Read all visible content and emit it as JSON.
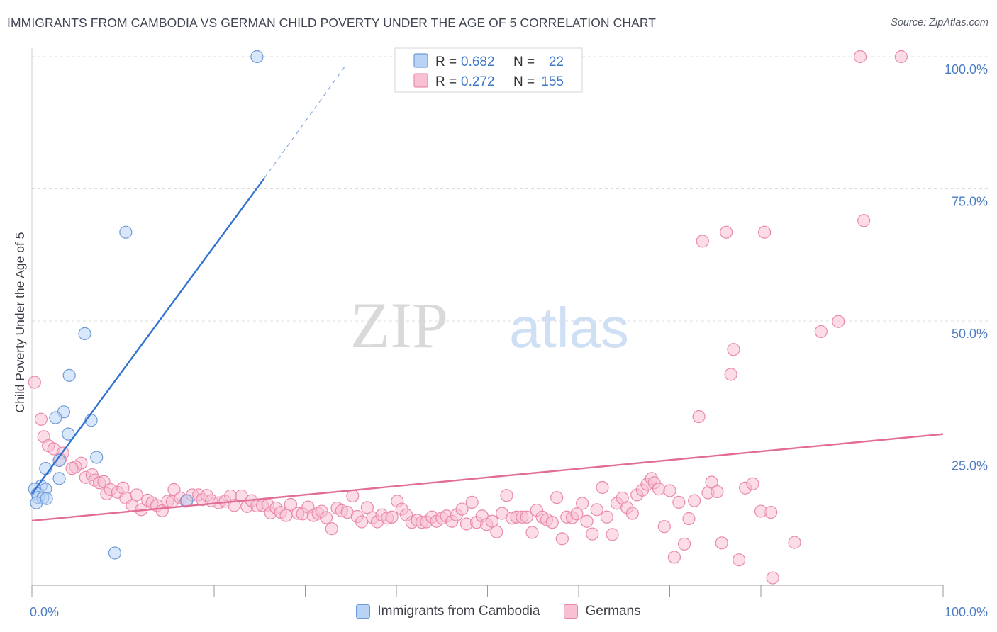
{
  "title": "IMMIGRANTS FROM CAMBODIA VS GERMAN CHILD POVERTY UNDER THE AGE OF 5 CORRELATION CHART",
  "source": "Source: ZipAtlas.com",
  "colors": {
    "blue_fill": "#b9d3f6",
    "blue_stroke": "#6f9bd8",
    "blue_line": "#2f72d0",
    "pink_fill": "#f8c0d3",
    "pink_stroke": "#e98aab",
    "pink_line": "#e36b97",
    "tick_label": "#4d7cc3",
    "grid": "#dcdcdc",
    "axis": "#9a9a9a"
  },
  "chart_data": {
    "type": "scatter",
    "title": "IMMIGRANTS FROM CAMBODIA VS GERMAN CHILD POVERTY UNDER THE AGE OF 5 CORRELATION CHART",
    "xlabel": "",
    "ylabel": "Child Poverty Under the Age of 5",
    "xlim": [
      0,
      100
    ],
    "ylim": [
      0,
      100
    ],
    "x_tick_labels": [
      "0.0%",
      "100.0%"
    ],
    "y_ticks": [
      25,
      50,
      75,
      100
    ],
    "y_tick_labels": [
      "25.0%",
      "50.0%",
      "75.0%",
      "100.0%"
    ],
    "grid": true,
    "legend_position": "top-center",
    "legend": [
      {
        "r_label": "R =",
        "r_value": "0.682",
        "n_label": "N =",
        "n_value": "22"
      },
      {
        "r_label": "R =",
        "r_value": "0.272",
        "n_label": "N =",
        "n_value": "155"
      }
    ],
    "series": [
      {
        "name": "Immigrants from Cambodia",
        "color": "blue",
        "trend": {
          "x0": 0,
          "y0": 17.3,
          "x1": 25.5,
          "y1": 77.0,
          "dash_to_x": 34.5,
          "dash_to_y": 98.5
        },
        "points": [
          [
            24.7,
            100
          ],
          [
            10.3,
            66.8
          ],
          [
            5.8,
            47.6
          ],
          [
            4.1,
            39.7
          ],
          [
            3.5,
            32.8
          ],
          [
            2.6,
            31.7
          ],
          [
            6.5,
            31.2
          ],
          [
            4.0,
            28.6
          ],
          [
            7.1,
            24.2
          ],
          [
            3.0,
            23.6
          ],
          [
            1.5,
            22.1
          ],
          [
            3.0,
            20.2
          ],
          [
            1.0,
            18.8
          ],
          [
            1.5,
            18.2
          ],
          [
            0.3,
            18.2
          ],
          [
            0.6,
            17.3
          ],
          [
            0.7,
            16.6
          ],
          [
            1.2,
            16.5
          ],
          [
            0.5,
            15.6
          ],
          [
            1.6,
            16.4
          ],
          [
            17.0,
            16.0
          ],
          [
            9.1,
            6.1
          ]
        ]
      },
      {
        "name": "Germans",
        "color": "pink",
        "trend": {
          "x0": 0,
          "y0": 12.2,
          "x1": 100,
          "y1": 28.6
        },
        "points": [
          [
            0.3,
            38.4
          ],
          [
            1.0,
            31.4
          ],
          [
            1.3,
            28.1
          ],
          [
            1.8,
            26.4
          ],
          [
            2.4,
            25.8
          ],
          [
            3.4,
            25.0
          ],
          [
            3.1,
            23.8
          ],
          [
            5.4,
            23.1
          ],
          [
            4.8,
            22.4
          ],
          [
            4.4,
            22.1
          ],
          [
            5.9,
            20.4
          ],
          [
            6.6,
            20.9
          ],
          [
            6.9,
            19.9
          ],
          [
            7.4,
            19.4
          ],
          [
            7.9,
            19.6
          ],
          [
            8.2,
            17.3
          ],
          [
            8.6,
            18.1
          ],
          [
            9.4,
            17.6
          ],
          [
            10.0,
            18.4
          ],
          [
            10.3,
            16.5
          ],
          [
            11.0,
            15.1
          ],
          [
            11.5,
            17.1
          ],
          [
            12.0,
            14.3
          ],
          [
            12.7,
            16.1
          ],
          [
            13.2,
            15.6
          ],
          [
            13.7,
            15.1
          ],
          [
            14.3,
            14.1
          ],
          [
            14.9,
            15.9
          ],
          [
            15.4,
            15.8
          ],
          [
            15.6,
            18.1
          ],
          [
            16.3,
            16.5
          ],
          [
            16.9,
            15.9
          ],
          [
            17.6,
            17.1
          ],
          [
            18.3,
            17.1
          ],
          [
            18.7,
            16.2
          ],
          [
            19.2,
            17.0
          ],
          [
            19.7,
            16.0
          ],
          [
            20.5,
            15.6
          ],
          [
            21.2,
            15.9
          ],
          [
            21.8,
            16.9
          ],
          [
            22.2,
            15.1
          ],
          [
            23.0,
            16.9
          ],
          [
            23.6,
            14.9
          ],
          [
            24.1,
            16.0
          ],
          [
            24.7,
            15.0
          ],
          [
            25.3,
            15.1
          ],
          [
            25.9,
            15.2
          ],
          [
            26.2,
            13.7
          ],
          [
            26.8,
            14.6
          ],
          [
            27.3,
            13.8
          ],
          [
            27.9,
            13.2
          ],
          [
            28.4,
            15.3
          ],
          [
            29.2,
            13.6
          ],
          [
            29.7,
            13.5
          ],
          [
            30.3,
            14.8
          ],
          [
            30.9,
            13.2
          ],
          [
            31.4,
            13.6
          ],
          [
            31.8,
            14.0
          ],
          [
            32.3,
            12.8
          ],
          [
            32.9,
            10.7
          ],
          [
            33.5,
            14.6
          ],
          [
            34.0,
            14.1
          ],
          [
            34.6,
            13.8
          ],
          [
            35.2,
            16.9
          ],
          [
            35.7,
            13.0
          ],
          [
            36.2,
            12.0
          ],
          [
            36.8,
            14.7
          ],
          [
            37.4,
            12.8
          ],
          [
            37.9,
            12.0
          ],
          [
            38.4,
            13.3
          ],
          [
            39.0,
            12.7
          ],
          [
            39.5,
            12.9
          ],
          [
            40.1,
            15.9
          ],
          [
            40.6,
            14.4
          ],
          [
            41.1,
            13.3
          ],
          [
            41.7,
            11.9
          ],
          [
            42.3,
            12.3
          ],
          [
            42.8,
            11.9
          ],
          [
            43.3,
            12.0
          ],
          [
            43.9,
            12.9
          ],
          [
            44.4,
            12.1
          ],
          [
            45.0,
            12.7
          ],
          [
            45.5,
            13.1
          ],
          [
            46.1,
            12.1
          ],
          [
            46.6,
            13.3
          ],
          [
            47.2,
            14.4
          ],
          [
            47.7,
            11.6
          ],
          [
            48.3,
            15.7
          ],
          [
            48.8,
            11.9
          ],
          [
            49.4,
            13.1
          ],
          [
            49.9,
            11.5
          ],
          [
            50.5,
            12.1
          ],
          [
            51.0,
            10.1
          ],
          [
            51.6,
            13.6
          ],
          [
            52.1,
            17.0
          ],
          [
            52.7,
            12.7
          ],
          [
            53.2,
            12.9
          ],
          [
            53.8,
            12.9
          ],
          [
            54.3,
            12.9
          ],
          [
            54.9,
            10.0
          ],
          [
            55.4,
            14.2
          ],
          [
            56.0,
            12.9
          ],
          [
            56.5,
            12.4
          ],
          [
            57.1,
            11.9
          ],
          [
            57.6,
            16.6
          ],
          [
            58.2,
            8.8
          ],
          [
            58.7,
            12.9
          ],
          [
            59.3,
            12.8
          ],
          [
            59.8,
            13.5
          ],
          [
            60.4,
            15.5
          ],
          [
            60.9,
            12.1
          ],
          [
            61.5,
            9.7
          ],
          [
            62.0,
            14.3
          ],
          [
            62.6,
            18.5
          ],
          [
            63.1,
            12.9
          ],
          [
            63.7,
            9.6
          ],
          [
            64.2,
            15.5
          ],
          [
            64.8,
            16.5
          ],
          [
            65.3,
            14.7
          ],
          [
            65.9,
            13.6
          ],
          [
            66.4,
            17.1
          ],
          [
            67.0,
            18.0
          ],
          [
            67.5,
            19.1
          ],
          [
            68.0,
            20.2
          ],
          [
            68.3,
            19.4
          ],
          [
            68.8,
            18.2
          ],
          [
            69.4,
            11.1
          ],
          [
            70.0,
            17.9
          ],
          [
            70.5,
            5.3
          ],
          [
            71.0,
            15.7
          ],
          [
            71.6,
            7.8
          ],
          [
            72.1,
            12.6
          ],
          [
            72.7,
            16.0
          ],
          [
            73.2,
            31.9
          ],
          [
            73.6,
            65.1
          ],
          [
            74.2,
            17.5
          ],
          [
            74.6,
            19.5
          ],
          [
            75.2,
            17.7
          ],
          [
            75.7,
            8.0
          ],
          [
            76.2,
            66.8
          ],
          [
            76.7,
            39.9
          ],
          [
            77.0,
            44.6
          ],
          [
            77.6,
            4.8
          ],
          [
            78.3,
            18.4
          ],
          [
            79.1,
            19.2
          ],
          [
            80.4,
            66.8
          ],
          [
            81.1,
            13.8
          ],
          [
            81.3,
            1.4
          ],
          [
            83.7,
            8.1
          ],
          [
            86.6,
            48.0
          ],
          [
            88.5,
            49.9
          ],
          [
            90.9,
            100
          ],
          [
            91.3,
            69.0
          ],
          [
            95.4,
            100
          ],
          [
            80.0,
            14.0
          ]
        ]
      }
    ]
  },
  "bottom_legend": [
    {
      "label": "Immigrants from Cambodia",
      "color": "blue"
    },
    {
      "label": "Germans",
      "color": "pink"
    }
  ],
  "watermark": {
    "part1": "ZIP",
    "part2": "atlas"
  }
}
